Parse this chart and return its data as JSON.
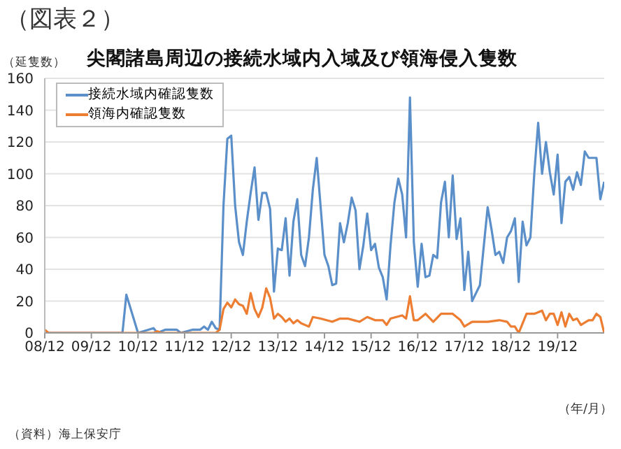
{
  "chart_data": {
    "type": "line",
    "title": "尖閣諸島周辺の接続水域内入域及び領海侵入隻数",
    "ylabel": "（延隻数）",
    "xlabel": "（年/月）",
    "annotations": [
      "（図表２）",
      "（資料）海上保安庁"
    ],
    "xlim": [
      "2008-12",
      "2020-12"
    ],
    "xticks": [
      {
        "value": "2008-12",
        "label": "08/12"
      },
      {
        "value": "2009-12",
        "label": "09/12"
      },
      {
        "value": "2010-12",
        "label": "10/12"
      },
      {
        "value": "2011-12",
        "label": "11/12"
      },
      {
        "value": "2012-12",
        "label": "12/12"
      },
      {
        "value": "2013-12",
        "label": "13/12"
      },
      {
        "value": "2014-12",
        "label": "14/12"
      },
      {
        "value": "2015-12",
        "label": "15/12"
      },
      {
        "value": "2016-12",
        "label": "16/12"
      },
      {
        "value": "2017-12",
        "label": "17/12"
      },
      {
        "value": "2018-12",
        "label": "18/12"
      },
      {
        "value": "2019-12",
        "label": "19/12"
      }
    ],
    "ylim": [
      0,
      160
    ],
    "yticks": [
      0,
      20,
      40,
      60,
      80,
      100,
      120,
      140,
      160
    ],
    "grid": "y",
    "legend": "top left",
    "marker": "none",
    "line_style": "solid",
    "series": [
      {
        "name": "接続水域内確認隻数",
        "color": "#5b8fc9",
        "x": [
          "2008-12",
          "2010-08",
          "2010-09",
          "2010-11",
          "2010-12",
          "2011-04",
          "2011-05",
          "2011-07",
          "2011-10",
          "2011-11",
          "2012-02",
          "2012-04",
          "2012-05",
          "2012-06",
          "2012-07",
          "2012-08",
          "2012-09",
          "2012-10",
          "2012-11",
          "2012-12",
          "2013-01",
          "2013-02",
          "2013-03",
          "2013-04",
          "2013-05",
          "2013-06",
          "2013-07",
          "2013-08",
          "2013-09",
          "2013-10",
          "2013-11",
          "2013-12",
          "2014-01",
          "2014-02",
          "2014-03",
          "2014-04",
          "2014-05",
          "2014-06",
          "2014-07",
          "2014-08",
          "2014-09",
          "2014-10",
          "2014-12",
          "2015-01",
          "2015-02",
          "2015-03",
          "2015-04",
          "2015-05",
          "2015-06",
          "2015-07",
          "2015-08",
          "2015-09",
          "2015-10",
          "2015-11",
          "2015-12",
          "2016-01",
          "2016-02",
          "2016-03",
          "2016-04",
          "2016-05",
          "2016-06",
          "2016-07",
          "2016-08",
          "2016-09",
          "2016-10",
          "2016-11",
          "2016-12",
          "2017-01",
          "2017-02",
          "2017-03",
          "2017-04",
          "2017-05",
          "2017-06",
          "2017-07",
          "2017-08",
          "2017-09",
          "2017-10",
          "2017-11",
          "2017-12",
          "2018-01",
          "2018-02",
          "2018-03",
          "2018-04",
          "2018-06",
          "2018-07",
          "2018-08",
          "2018-09",
          "2018-10",
          "2018-11",
          "2018-12",
          "2019-01",
          "2019-02",
          "2019-03",
          "2019-04",
          "2019-05",
          "2019-06",
          "2019-07",
          "2019-08",
          "2019-09",
          "2019-10",
          "2019-11",
          "2019-12",
          "2020-01",
          "2020-02",
          "2020-03",
          "2020-04",
          "2020-05",
          "2020-06",
          "2020-07",
          "2020-08",
          "2020-10",
          "2020-11",
          "2020-12"
        ],
        "values": [
          0,
          0,
          24,
          8,
          0,
          3,
          0,
          2,
          2,
          0,
          2,
          2,
          4,
          2,
          7,
          3,
          2,
          80,
          122,
          124,
          80,
          57,
          49,
          70,
          88,
          104,
          71,
          88,
          88,
          78,
          26,
          53,
          52,
          72,
          36,
          70,
          84,
          49,
          42,
          60,
          90,
          110,
          49,
          42,
          30,
          31,
          69,
          57,
          69,
          85,
          77,
          40,
          55,
          75,
          52,
          56,
          41,
          35,
          21,
          55,
          82,
          97,
          87,
          60,
          148,
          57,
          29,
          56,
          35,
          36,
          49,
          47,
          82,
          95,
          60,
          99,
          59,
          72,
          27,
          51,
          20,
          25,
          30,
          79,
          65,
          49,
          51,
          44,
          60,
          64,
          72,
          32,
          70,
          55,
          60,
          100,
          132,
          100,
          120,
          101,
          87,
          112,
          69,
          95,
          98,
          90,
          101,
          93,
          114,
          110,
          110,
          84,
          95
        ]
      },
      {
        "name": "領海内確認隻数",
        "color": "#ed7d31",
        "x": [
          "2008-12",
          "2009-01",
          "2011-04",
          "2011-05",
          "2011-06",
          "2012-08",
          "2012-09",
          "2012-10",
          "2012-11",
          "2012-12",
          "2013-01",
          "2013-02",
          "2013-03",
          "2013-04",
          "2013-05",
          "2013-06",
          "2013-07",
          "2013-08",
          "2013-09",
          "2013-10",
          "2013-11",
          "2013-12",
          "2014-01",
          "2014-02",
          "2014-03",
          "2014-04",
          "2014-05",
          "2014-06",
          "2014-07",
          "2014-08",
          "2014-09",
          "2014-11",
          "2015-02",
          "2015-04",
          "2015-06",
          "2015-09",
          "2015-11",
          "2016-01",
          "2016-03",
          "2016-04",
          "2016-05",
          "2016-08",
          "2016-09",
          "2016-10",
          "2016-11",
          "2016-12",
          "2017-02",
          "2017-04",
          "2017-06",
          "2017-09",
          "2017-11",
          "2017-12",
          "2018-02",
          "2018-04",
          "2018-06",
          "2018-09",
          "2018-11",
          "2018-12",
          "2019-01",
          "2019-02",
          "2019-04",
          "2019-06",
          "2019-08",
          "2019-09",
          "2019-10",
          "2019-11",
          "2019-12",
          "2020-01",
          "2020-02",
          "2020-03",
          "2020-04",
          "2020-05",
          "2020-06",
          "2020-08",
          "2020-09",
          "2020-10",
          "2020-11",
          "2020-12"
        ],
        "values": [
          2,
          0,
          0,
          1,
          0,
          0,
          2,
          15,
          19,
          16,
          21,
          18,
          17,
          12,
          25,
          15,
          10,
          16,
          28,
          22,
          9,
          12,
          10,
          7,
          9,
          6,
          8,
          6,
          5,
          4,
          10,
          9,
          7,
          9,
          9,
          7,
          10,
          8,
          8,
          5,
          9,
          11,
          9,
          23,
          8,
          8,
          12,
          7,
          12,
          12,
          8,
          4,
          7,
          7,
          7,
          8,
          7,
          4,
          4,
          0,
          12,
          12,
          14,
          8,
          12,
          12,
          5,
          13,
          4,
          12,
          8,
          9,
          5,
          8,
          8,
          12,
          10,
          0
        ]
      }
    ]
  }
}
